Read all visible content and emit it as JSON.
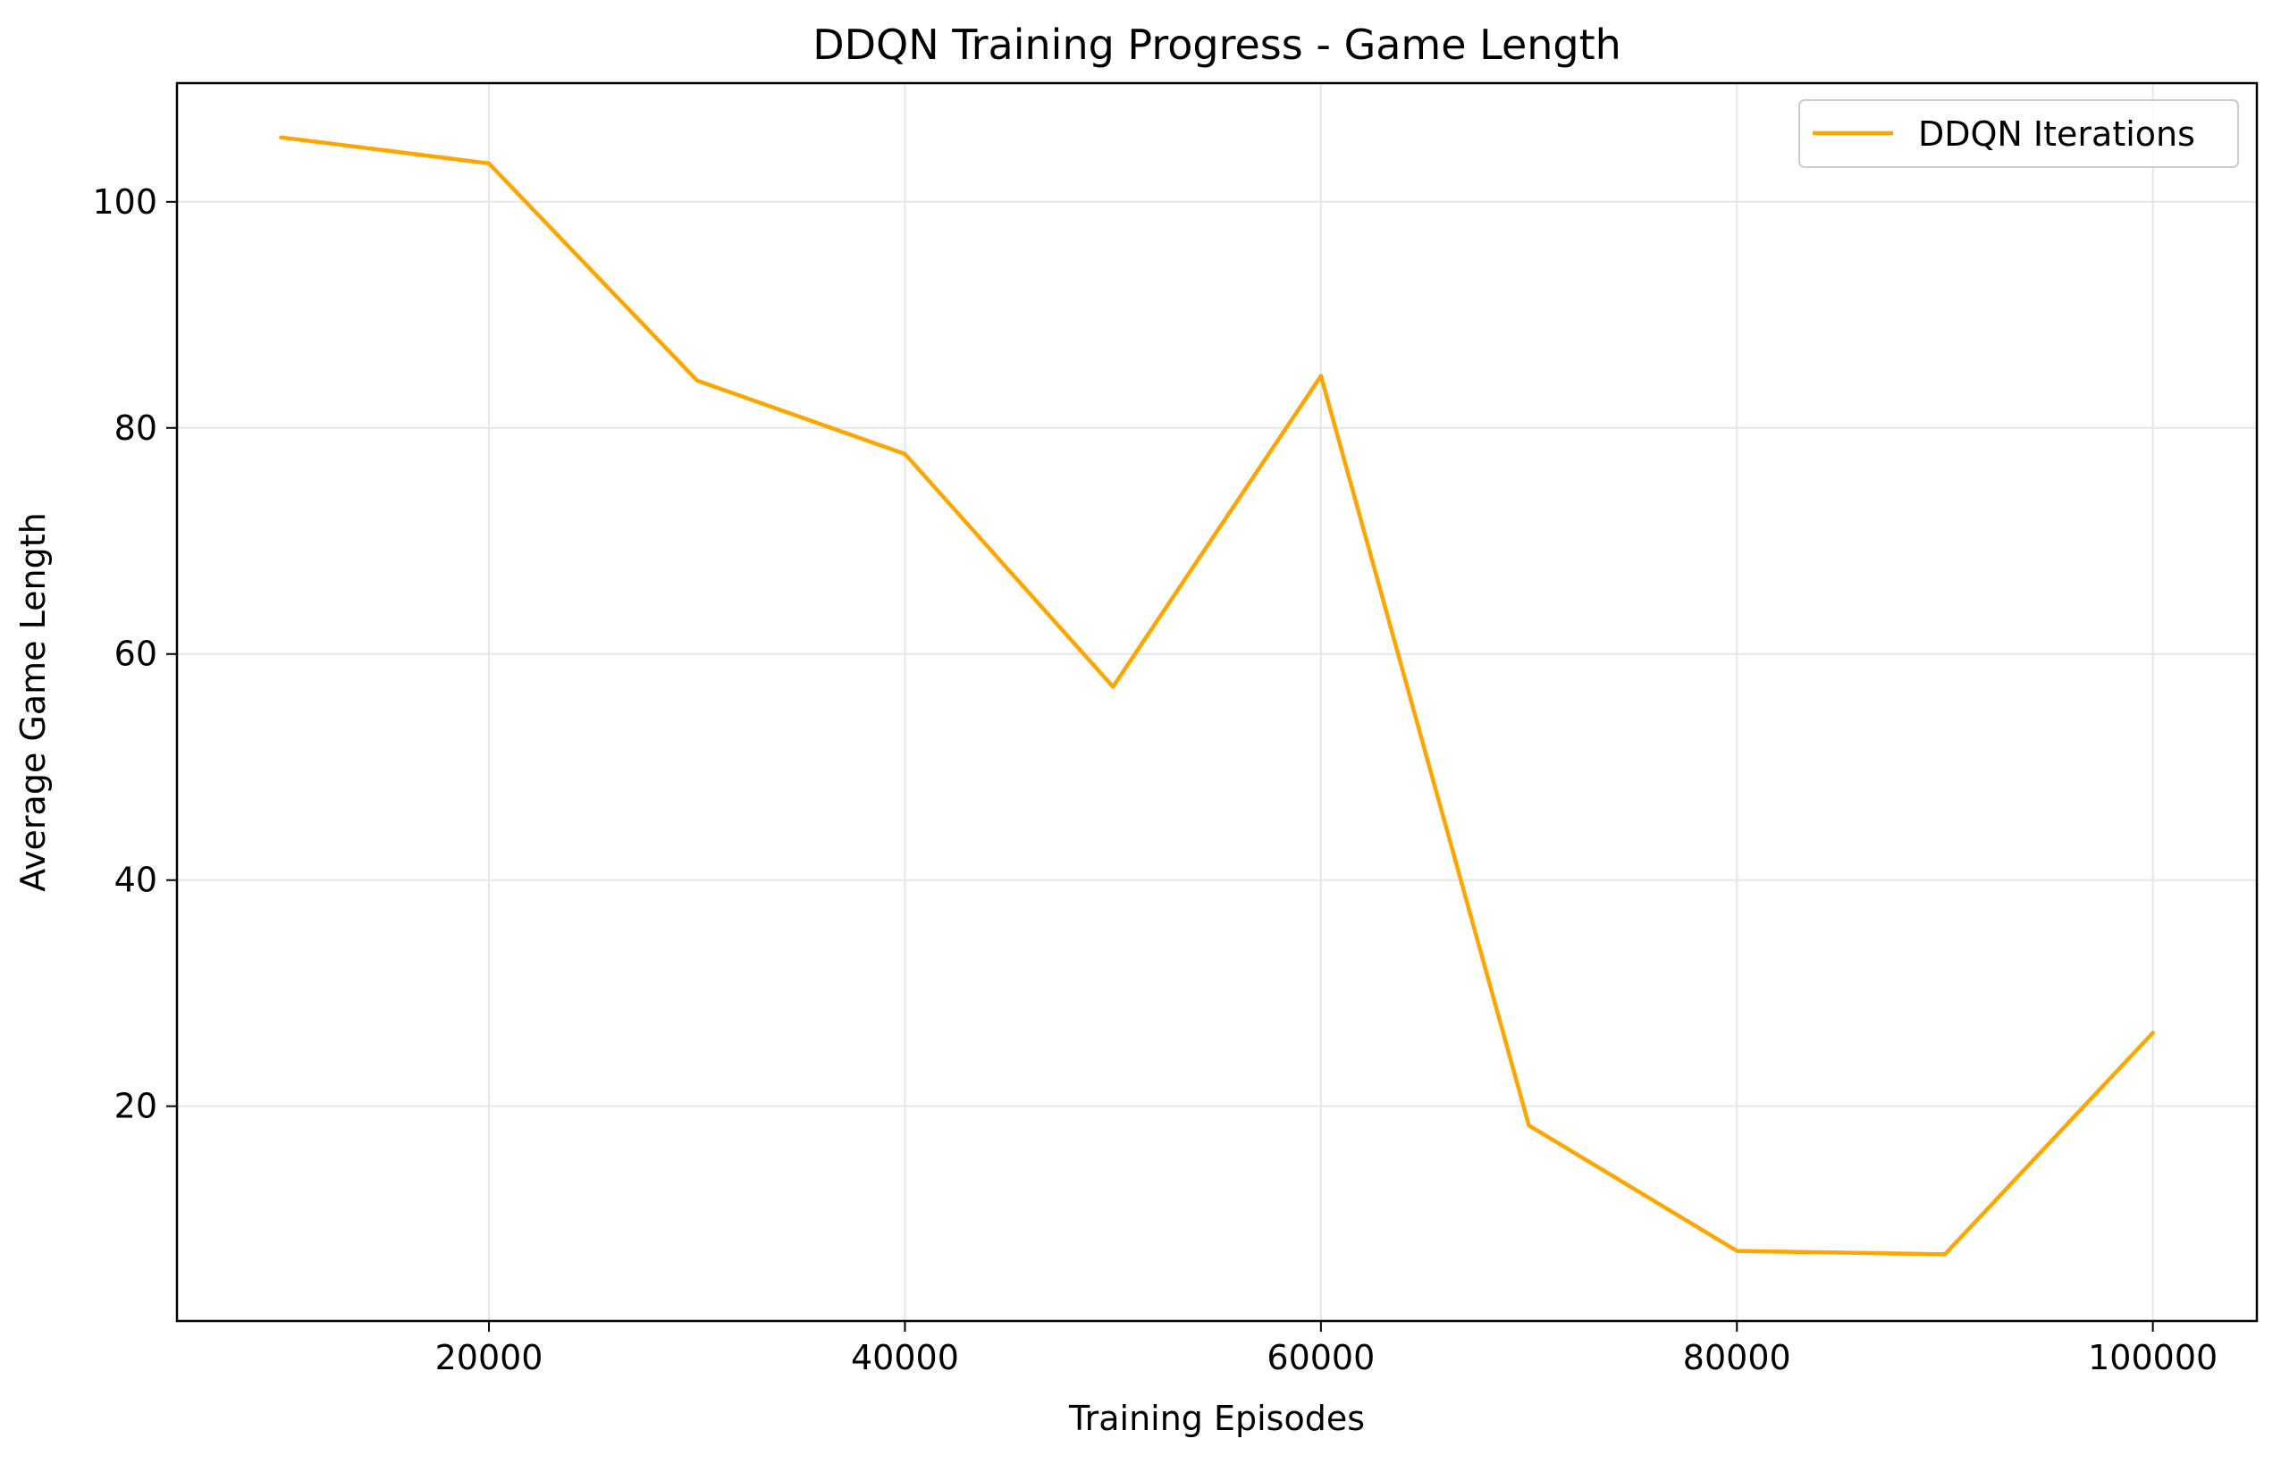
{
  "chart_data": {
    "type": "line",
    "title": "DDQN Training Progress - Game Length",
    "xlabel": "Training Episodes",
    "ylabel": "Average Game Length",
    "xlim": [
      5000,
      105000
    ],
    "ylim": [
      1,
      110.5
    ],
    "xticks": [
      20000,
      40000,
      60000,
      80000,
      100000
    ],
    "yticks": [
      20,
      40,
      60,
      80,
      100
    ],
    "grid": true,
    "legend_position": "top-right",
    "series": [
      {
        "name": "DDQN Iterations",
        "color": "#ffa500",
        "x": [
          10000,
          20000,
          30000,
          40000,
          50000,
          60000,
          70000,
          80000,
          90000,
          100000
        ],
        "values": [
          105.7,
          103.4,
          84.2,
          77.7,
          57.1,
          84.6,
          18.3,
          7.2,
          6.9,
          26.5
        ]
      }
    ]
  }
}
